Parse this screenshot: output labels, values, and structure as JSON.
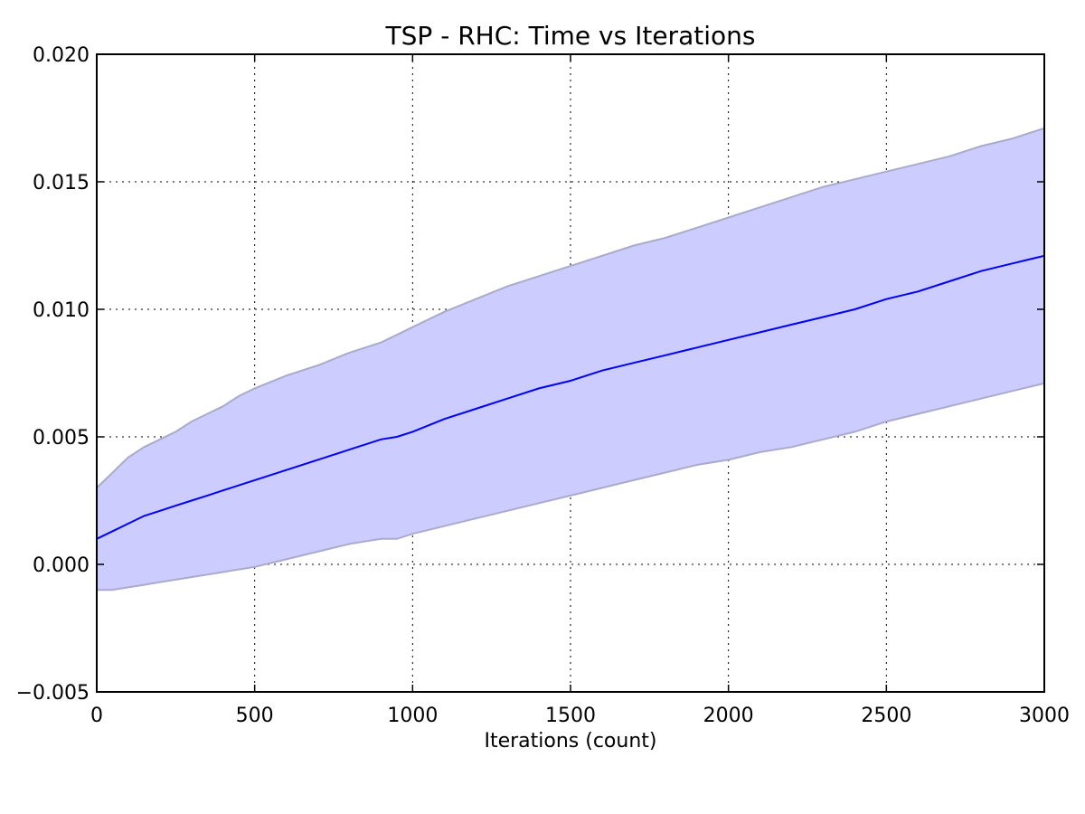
{
  "chart_data": {
    "type": "line",
    "title": "TSP - RHC: Time vs Iterations",
    "xlabel": "Iterations (count)",
    "ylabel": "",
    "xlim": [
      0,
      3000
    ],
    "ylim": [
      -0.005,
      0.02
    ],
    "x_ticks": [
      "0",
      "500",
      "1000",
      "1500",
      "2000",
      "2500",
      "3000"
    ],
    "y_ticks": [
      "−0.005",
      "0.000",
      "0.005",
      "0.010",
      "0.015",
      "0.020"
    ],
    "grid": true,
    "line_color": "#0000ff",
    "band_color": "#ccccff",
    "band_edge_color": "#aaaacc",
    "x": [
      0,
      50,
      100,
      150,
      200,
      250,
      300,
      350,
      400,
      450,
      500,
      600,
      700,
      800,
      900,
      950,
      1000,
      1100,
      1200,
      1300,
      1400,
      1500,
      1600,
      1700,
      1800,
      1900,
      2000,
      2100,
      2200,
      2300,
      2400,
      2500,
      2600,
      2700,
      2800,
      2900,
      3000
    ],
    "series": [
      {
        "values": [
          0.001,
          0.0013,
          0.0016,
          0.0019,
          0.0021,
          0.0023,
          0.0025,
          0.0027,
          0.0029,
          0.0031,
          0.0033,
          0.0037,
          0.0041,
          0.0045,
          0.0049,
          0.005,
          0.0052,
          0.0057,
          0.0061,
          0.0065,
          0.0069,
          0.0072,
          0.0076,
          0.0079,
          0.0082,
          0.0085,
          0.0088,
          0.0091,
          0.0094,
          0.0097,
          0.01,
          0.0104,
          0.0107,
          0.0111,
          0.0115,
          0.0118,
          0.0121
        ],
        "upper": [
          0.003,
          0.0036,
          0.0042,
          0.0046,
          0.0049,
          0.0052,
          0.0056,
          0.0059,
          0.0062,
          0.0066,
          0.0069,
          0.0074,
          0.0078,
          0.0083,
          0.0087,
          0.009,
          0.0093,
          0.0099,
          0.0104,
          0.0109,
          0.0113,
          0.0117,
          0.0121,
          0.0125,
          0.0128,
          0.0132,
          0.0136,
          0.014,
          0.0144,
          0.0148,
          0.0151,
          0.0154,
          0.0157,
          0.016,
          0.0164,
          0.0167,
          0.0171
        ],
        "lower": [
          -0.001,
          -0.001,
          -0.0009,
          -0.0008,
          -0.0007,
          -0.0006,
          -0.0005,
          -0.0004,
          -0.0003,
          -0.0002,
          -0.0001,
          0.0002,
          0.0005,
          0.0008,
          0.001,
          0.001,
          0.0012,
          0.0015,
          0.0018,
          0.0021,
          0.0024,
          0.0027,
          0.003,
          0.0033,
          0.0036,
          0.0039,
          0.0041,
          0.0044,
          0.0046,
          0.0049,
          0.0052,
          0.0056,
          0.0059,
          0.0062,
          0.0065,
          0.0068,
          0.0071
        ]
      }
    ]
  }
}
